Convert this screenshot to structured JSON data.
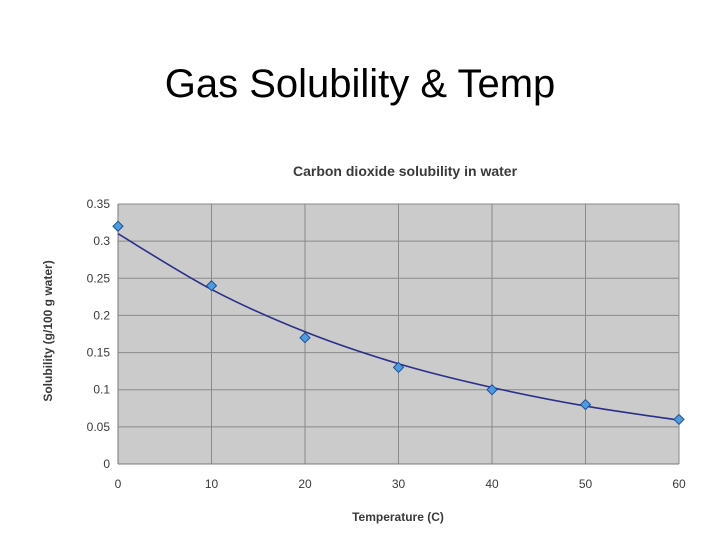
{
  "slide": {
    "title": "Gas Solubility & Temp"
  },
  "colors": {
    "plot_background": "#cbcbcb",
    "gridline": "#8a8a8a",
    "trendline": "#2b2f8a",
    "marker_fill": "#4f9be0",
    "marker_stroke": "#1c4f94",
    "text": "#3a3a3a"
  },
  "chart_data": {
    "type": "scatter",
    "title": "Carbon dioxide solubility in water",
    "xlabel": "Temperature (C)",
    "ylabel": "Solubility (g/100 g water)",
    "xlim": [
      0,
      60
    ],
    "ylim": [
      0,
      0.35
    ],
    "x_ticks": [
      0,
      10,
      20,
      30,
      40,
      50,
      60
    ],
    "y_ticks": [
      0,
      0.05,
      0.1,
      0.15,
      0.2,
      0.25,
      0.3,
      0.35
    ],
    "x_tick_labels": [
      "0",
      "10",
      "20",
      "30",
      "40",
      "50",
      "60"
    ],
    "y_tick_labels": [
      "0",
      "0.05",
      "0.1",
      "0.15",
      "0.2",
      "0.25",
      "0.3",
      "0.35"
    ],
    "grid": true,
    "legend": "none",
    "marker": "diamond",
    "series": [
      {
        "x": [
          0,
          10,
          20,
          30,
          40,
          50,
          60
        ],
        "y": [
          0.32,
          0.24,
          0.17,
          0.13,
          0.1,
          0.08,
          0.06
        ]
      }
    ],
    "trendline": {
      "type": "exponential",
      "x": [
        0,
        10,
        20,
        30,
        40,
        50,
        60
      ],
      "y": [
        0.31,
        0.235,
        0.178,
        0.135,
        0.103,
        0.078,
        0.059
      ]
    }
  }
}
